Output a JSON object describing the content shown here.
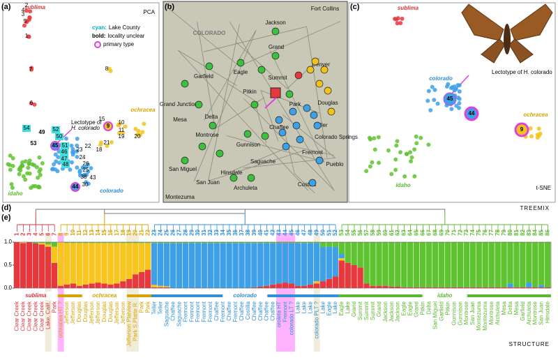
{
  "panel_labels": [
    "(a)",
    "(b)",
    "(c)",
    "(d)",
    "(e)"
  ],
  "pca": {
    "title": "PCA",
    "legend": [
      {
        "key": "cyan:",
        "text": "Lake County"
      },
      {
        "key": "bold:",
        "text": "locality unclear"
      },
      {
        "text": "primary type"
      }
    ],
    "annotation": [
      "Lectotype of",
      "H. colorado"
    ],
    "group_labels": [
      "sublima",
      "ochracea",
      "colorado",
      "idaho"
    ],
    "point_labels": [
      "2",
      "4",
      "3",
      "5",
      "1",
      "7",
      "6",
      "8",
      "54",
      "49",
      "52",
      "50",
      "53",
      "45",
      "51",
      "46",
      "47",
      "48",
      "44",
      "30",
      "43",
      "38",
      "25",
      "26",
      "24",
      "23",
      "22",
      "21",
      "18",
      "19",
      "11",
      "20",
      "10",
      "15",
      "9"
    ]
  },
  "map": {
    "labels": [
      "Jackson",
      "Fort Collins",
      "COLORADO",
      "Grand",
      "Garfield",
      "Eagle",
      "Summit",
      "Denver",
      "Grand Junction",
      "Mesa",
      "Pitkin",
      "Delta",
      "Park",
      "Douglas",
      "Teller",
      "Montrose",
      "Gunnison",
      "Chaffee",
      "Fremont",
      "Colorado Springs",
      "Saguache",
      "San Miguel",
      "San Juan",
      "Hinsdale",
      "Pueblo",
      "Montezuma",
      "Archuleta",
      "Costilla"
    ]
  },
  "tsne": {
    "title": "t-SNE",
    "annotation": [
      "Lectotype of H. colorado"
    ],
    "group_labels": [
      "sublima",
      "colorado",
      "ochracea",
      "idaho"
    ],
    "point_labels": [
      "45",
      "44",
      "9"
    ]
  },
  "treemix_label": "TREEMIX",
  "structure_label": "STRUCTURE",
  "chart_data": {
    "type": "stacked-bar",
    "ylim": [
      0,
      1
    ],
    "yticks": [
      {
        "value": 0,
        "label": "0.0"
      },
      {
        "value": 0.5,
        "label": "0.5"
      },
      {
        "value": 1,
        "label": "1.0"
      }
    ],
    "categories": [
      "1",
      "2",
      "3",
      "4",
      "5",
      "6",
      "7",
      "8",
      "9",
      "10",
      "11",
      "12",
      "13",
      "14",
      "15",
      "16",
      "17",
      "18",
      "19",
      "20",
      "21",
      "22",
      "23",
      "24",
      "25",
      "26",
      "27",
      "28",
      "29",
      "30",
      "31",
      "32",
      "33",
      "34",
      "35",
      "36",
      "37",
      "38",
      "39",
      "40",
      "41",
      "42",
      "43",
      "44",
      "45",
      "46",
      "47",
      "48",
      "49",
      "50",
      "51",
      "52",
      "53",
      "54",
      "55",
      "56",
      "57",
      "58",
      "59",
      "60",
      "61",
      "62",
      "63",
      "64",
      "65",
      "66",
      "67",
      "68",
      "69",
      "70",
      "71",
      "72",
      "73",
      "74",
      "75",
      "76",
      "77",
      "78",
      "79",
      "80",
      "81",
      "82",
      "83",
      "84",
      "85",
      "86"
    ],
    "localities": [
      "Clear Creek",
      "Clear Creek",
      "Clear Creek",
      "Clear Creek",
      "Clear Creek",
      "Lake, Calif.",
      "Park",
      "ochracea HT ?",
      "Jefferson",
      "Jefferson",
      "Douglas",
      "Douglas",
      "Jefferson",
      "Jefferson",
      "Douglas",
      "Douglas",
      "Jefferson",
      "Jefferson",
      "Jefferson Platview",
      "Park S.Platte R.",
      "Park",
      "Park",
      "Teller",
      "Teller",
      "Saguache",
      "Chaffee",
      "Saguache",
      "Fremont",
      "Fremont",
      "Fremont",
      "Fremont",
      "Fremont",
      "Chaffee",
      "Fremont",
      "Chaffee",
      "Fremont",
      "Chaffee",
      "Costilla",
      "Chaffee",
      "Chaffee",
      "Chaffee",
      "Chaffee",
      "oroleta HT",
      "Fremont",
      "colorado LT ?",
      "Lake",
      "Lake",
      "Lake",
      "colorado PLT ?",
      "Lake",
      "Eagle",
      "Lake",
      "Eagle",
      "Lake",
      "Grand",
      "Summit",
      "Summit",
      "Summit",
      "Grand",
      "Jackson",
      "Jackson",
      "Jackson",
      "Eagle",
      "Eagle",
      "Grand",
      "Pitkin",
      "Delta",
      "San Miguel",
      "Garfield",
      "Pitkin",
      "Gunnison",
      "Gunnison",
      "Montrose",
      "San Juan",
      "Montezuma",
      "Montezuma",
      "Montrose",
      "Archuleta",
      "Mesa",
      "Delta",
      "Mesa",
      "Garfield",
      "Archuleta",
      "Montrose",
      "San Juan",
      "Hinsdale"
    ],
    "groups": [
      {
        "name": "sublima",
        "color": "#d9363e"
      },
      {
        "name": "ochracea",
        "color": "#d8a300"
      },
      {
        "name": "colorado",
        "color": "#2f8fd8"
      },
      {
        "name": "idaho",
        "color": "#5cb82e"
      }
    ],
    "series": [
      {
        "color": "#e8383d",
        "values": [
          1,
          0.98,
          1,
          0.97,
          0.95,
          0.9,
          0.55,
          0.05,
          0.08,
          0.1,
          0.05,
          0.08,
          0.1,
          0.12,
          0.1,
          0.08,
          0.1,
          0.15,
          0.2,
          0.3,
          0.35,
          0.4,
          0.02,
          0.02,
          0.02,
          0,
          0,
          0,
          0,
          0,
          0,
          0,
          0,
          0,
          0,
          0,
          0,
          0,
          0.02,
          0.03,
          0.05,
          0.08,
          0.1,
          0.12,
          0.1,
          0.05,
          0.05,
          0.08,
          0.1,
          0.15,
          0.2,
          0.25,
          0.6,
          0.55,
          0.5,
          0.45,
          0.1,
          0.05,
          0.05,
          0.05,
          0.03,
          0.03,
          0.02,
          0.02,
          0.02,
          0.02,
          0.02,
          0.02,
          0.02,
          0.02,
          0.02,
          0.02,
          0.02,
          0.02,
          0.02,
          0.02,
          0.02,
          0.02,
          0.02,
          0.02,
          0.02,
          0.02,
          0.02,
          0.02,
          0.02,
          0.02
        ]
      },
      {
        "color": "#f7c51e",
        "values": [
          0,
          0.02,
          0,
          0,
          0.03,
          0.05,
          0.35,
          0.95,
          0.9,
          0.88,
          0.93,
          0.9,
          0.88,
          0.86,
          0.88,
          0.9,
          0.88,
          0.83,
          0.78,
          0.68,
          0.63,
          0.58,
          0.05,
          0.03,
          0.02,
          0,
          0,
          0,
          0,
          0,
          0,
          0,
          0,
          0,
          0,
          0,
          0,
          0,
          0,
          0,
          0,
          0,
          0,
          0,
          0,
          0,
          0,
          0,
          0.05,
          0,
          0,
          0,
          0.05,
          0,
          0,
          0,
          0,
          0,
          0,
          0,
          0,
          0,
          0,
          0,
          0,
          0,
          0,
          0,
          0,
          0,
          0,
          0,
          0,
          0,
          0,
          0,
          0,
          0,
          0,
          0,
          0,
          0,
          0,
          0,
          0,
          0
        ]
      },
      {
        "color": "#3ea0e6",
        "values": [
          0,
          0,
          0,
          0,
          0,
          0,
          0,
          0,
          0,
          0,
          0,
          0,
          0,
          0,
          0,
          0,
          0,
          0,
          0,
          0,
          0,
          0,
          0.91,
          0.93,
          0.94,
          0.98,
          0.98,
          0.98,
          0.98,
          0.98,
          0.98,
          0.98,
          0.98,
          0.98,
          0.98,
          0.98,
          0.98,
          0.98,
          0.96,
          0.95,
          0.93,
          0.9,
          0.88,
          0.86,
          0.88,
          0.93,
          0.93,
          0.9,
          0.83,
          0.75,
          0.7,
          0.65,
          0.1,
          0,
          0,
          0,
          0,
          0,
          0,
          0,
          0,
          0,
          0,
          0,
          0,
          0,
          0,
          0,
          0,
          0,
          0,
          0,
          0,
          0,
          0,
          0,
          0,
          0,
          0,
          0.08,
          0,
          0,
          0.1,
          0,
          0.05,
          0
        ]
      },
      {
        "color": "#5fc230",
        "values": [
          0,
          0,
          0,
          0.03,
          0.02,
          0.05,
          0.1,
          0,
          0.02,
          0.02,
          0.02,
          0.02,
          0.02,
          0.02,
          0.02,
          0.02,
          0.02,
          0.02,
          0.02,
          0.02,
          0.02,
          0.02,
          0.02,
          0.02,
          0.02,
          0.02,
          0.02,
          0.02,
          0.02,
          0.02,
          0.02,
          0.02,
          0.02,
          0.02,
          0.02,
          0.02,
          0.02,
          0.02,
          0.02,
          0.02,
          0.02,
          0.02,
          0.02,
          0.02,
          0.02,
          0.02,
          0.02,
          0.02,
          0.02,
          0.1,
          0.1,
          0.1,
          0.25,
          0.45,
          0.5,
          0.55,
          0.9,
          0.95,
          0.95,
          0.95,
          0.97,
          0.97,
          0.98,
          0.98,
          0.98,
          0.98,
          0.98,
          0.98,
          0.98,
          0.98,
          0.98,
          0.98,
          0.98,
          0.98,
          0.98,
          0.98,
          0.98,
          0.98,
          0.98,
          0.9,
          0.98,
          0.98,
          0.88,
          0.98,
          0.93,
          0.98
        ]
      }
    ]
  }
}
